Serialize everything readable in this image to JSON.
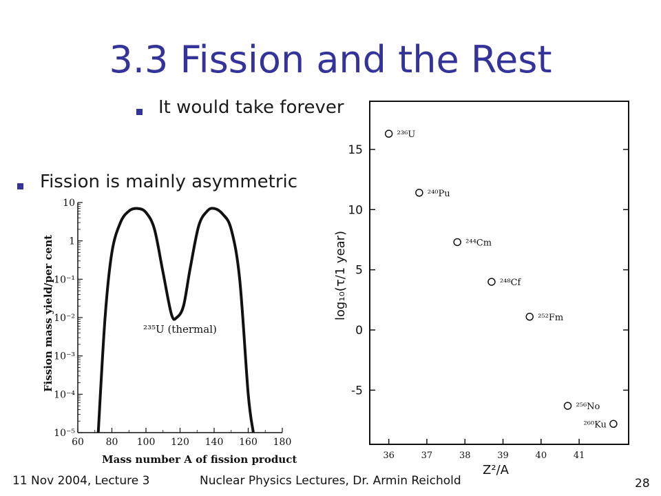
{
  "slide": {
    "title": "3.3 Fission and the Rest",
    "bullet1": "It would take forever",
    "bullet2": "Fission is mainly asymmetric",
    "footer_left": "11 Nov 2004, Lecture 3",
    "footer_center": "Nuclear Physics  Lectures, Dr. Armin Reichold",
    "page_number": "28"
  },
  "chart_data": [
    {
      "type": "line",
      "title": "",
      "xlabel": "Mass number A of fission product",
      "ylabel": "Fission mass yield/per cent",
      "yscale": "log",
      "xlim": [
        60,
        180
      ],
      "ylim": [
        1e-05,
        10
      ],
      "x_ticks": [
        "60",
        "80",
        "100",
        "120",
        "140",
        "160",
        "180"
      ],
      "y_ticks": [
        "10",
        "1",
        "10⁻¹",
        "10⁻²",
        "10⁻³",
        "10⁻⁴",
        "10⁻⁵"
      ],
      "annotation": "²³⁵U (thermal)",
      "series": [
        {
          "x": [
            72,
            76,
            80,
            85,
            90,
            95,
            100,
            105,
            110,
            115,
            118,
            122,
            126,
            131,
            136,
            140,
            145,
            150,
            155,
            160,
            163
          ],
          "y": [
            1e-05,
            0.01,
            0.5,
            3,
            6,
            7,
            5.5,
            2,
            0.15,
            0.012,
            0.01,
            0.02,
            0.2,
            2.5,
            6,
            7,
            5,
            2,
            0.1,
            0.0001,
            1e-05
          ]
        }
      ]
    },
    {
      "type": "scatter",
      "title": "",
      "xlabel": "Z²/A",
      "ylabel": "log₁₀(τ/1 year)",
      "xlim": [
        35.5,
        42.3
      ],
      "ylim": [
        -9.5,
        19
      ],
      "x_ticks": [
        "36",
        "37",
        "38",
        "39",
        "40",
        "41"
      ],
      "y_ticks": [
        "15",
        "10",
        "5",
        "0",
        "-5"
      ],
      "points": [
        {
          "label": "²³⁶U",
          "x": 36.0,
          "y": 16.3
        },
        {
          "label": "²⁴⁰Pu",
          "x": 36.8,
          "y": 11.4
        },
        {
          "label": "²⁴⁴Cm",
          "x": 37.8,
          "y": 7.3
        },
        {
          "label": "²⁴⁸Cf",
          "x": 38.7,
          "y": 4.0
        },
        {
          "label": "²⁵²Fm",
          "x": 39.7,
          "y": 1.1
        },
        {
          "label": "²⁵⁶No",
          "x": 40.7,
          "y": -6.3
        },
        {
          "label": "²⁶⁰Ku",
          "x": 41.9,
          "y": -7.8
        }
      ]
    }
  ]
}
